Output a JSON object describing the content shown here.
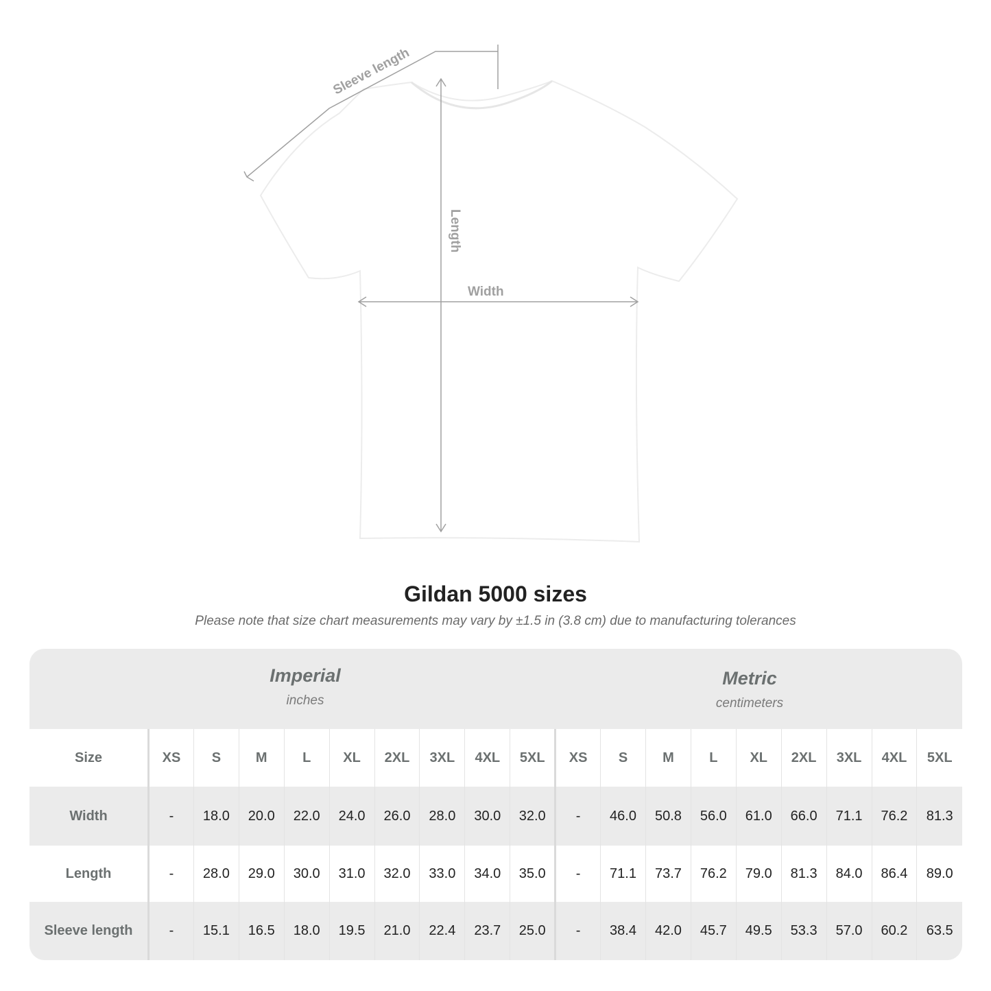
{
  "diagram": {
    "labels": {
      "sleeve": "Sleeve length",
      "length": "Length",
      "width": "Width"
    },
    "line_color": "#a0a0a0"
  },
  "title": "Gildan 5000 sizes",
  "subtitle": "Please note that size chart measurements may vary by ±1.5 in (3.8 cm) due to manufacturing tolerances",
  "table": {
    "imperial": {
      "name": "Imperial",
      "unit": "inches"
    },
    "metric": {
      "name": "Metric",
      "unit": "centimeters"
    },
    "size_label": "Size",
    "sizes": [
      "XS",
      "S",
      "M",
      "L",
      "XL",
      "2XL",
      "3XL",
      "4XL",
      "5XL"
    ],
    "rows": [
      {
        "label": "Width",
        "imperial": [
          "-",
          "18.0",
          "20.0",
          "22.0",
          "24.0",
          "26.0",
          "28.0",
          "30.0",
          "32.0"
        ],
        "metric": [
          "-",
          "46.0",
          "50.8",
          "56.0",
          "61.0",
          "66.0",
          "71.1",
          "76.2",
          "81.3"
        ]
      },
      {
        "label": "Length",
        "imperial": [
          "-",
          "28.0",
          "29.0",
          "30.0",
          "31.0",
          "32.0",
          "33.0",
          "34.0",
          "35.0"
        ],
        "metric": [
          "-",
          "71.1",
          "73.7",
          "76.2",
          "79.0",
          "81.3",
          "84.0",
          "86.4",
          "89.0"
        ]
      },
      {
        "label": "Sleeve length",
        "imperial": [
          "-",
          "15.1",
          "16.5",
          "18.0",
          "19.5",
          "21.0",
          "22.4",
          "23.7",
          "25.0"
        ],
        "metric": [
          "-",
          "38.4",
          "42.0",
          "45.7",
          "49.5",
          "53.3",
          "57.0",
          "60.2",
          "63.5"
        ]
      }
    ],
    "header_bg": "#ebebeb",
    "label_color": "#6b7070"
  }
}
